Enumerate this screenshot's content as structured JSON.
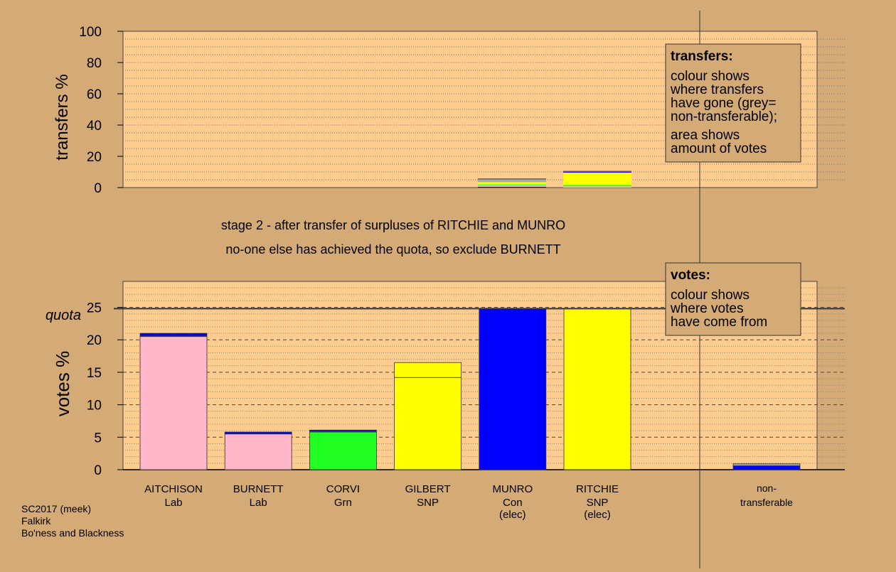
{
  "page": {
    "caption": [
      "stage 2 - after transfer of surpluses of RITCHIE and MUNRO",
      "no-one else has achieved the quota, so exclude BURNETT"
    ],
    "footer": [
      "SC2017 (meek)",
      "Falkirk",
      "Bo'ness and Blackness"
    ]
  },
  "colors": {
    "background": "#d4aa76",
    "plot_bg": "#ffcc8f",
    "Lab": "#ffb6c8",
    "Grn": "#22ff22",
    "SNP": "#ffff00",
    "Con": "#0000ff",
    "nontransferable": "#a9a9a9"
  },
  "chart_data": [
    {
      "type": "bar",
      "name": "transfers",
      "ylabel": "transfers %",
      "ylim": [
        0,
        100
      ],
      "yticks": [
        0,
        20,
        40,
        60,
        80,
        100
      ],
      "grid": "dotted every 5",
      "legend": {
        "placement": "top-right",
        "title": "transfers:",
        "lines": [
          "colour shows",
          "where transfers",
          "have gone (grey=",
          "non-transferable);"
        ],
        "lines2": [
          "area shows",
          "amount of votes"
        ]
      },
      "columns": [
        {
          "candidate": "MUNRO",
          "segments": [
            {
              "party": "Con",
              "value": 0.5
            },
            {
              "party": "Lab",
              "value": 1.0
            },
            {
              "party": "Grn",
              "value": 0.5
            },
            {
              "party": "SNP",
              "value": 1.5
            },
            {
              "party": "nontransferable",
              "value": 2.0
            }
          ]
        },
        {
          "candidate": "RITCHIE",
          "segments": [
            {
              "party": "Lab",
              "value": 0.8
            },
            {
              "party": "Grn",
              "value": 0.8
            },
            {
              "party": "SNP",
              "value": 8.0
            },
            {
              "party": "Con",
              "value": 0.4
            },
            {
              "party": "nontransferable",
              "value": 0.4
            }
          ]
        }
      ]
    },
    {
      "type": "bar",
      "name": "votes",
      "ylabel": "votes %",
      "ylim": [
        0,
        29
      ],
      "yticks": [
        0,
        5,
        10,
        15,
        20,
        25
      ],
      "quota": 24.8,
      "quota_label": "quota",
      "grid": "dashed every 5, dotted every 1",
      "legend": {
        "placement": "top-right",
        "title": "votes:",
        "lines": [
          "colour shows",
          "where votes",
          "have come from"
        ]
      },
      "categories": [
        {
          "name": "AITCHISON",
          "party": "Lab",
          "note": "",
          "segments": [
            {
              "party": "Lab",
              "value": 20.5
            },
            {
              "party": "SNP",
              "value": 0.1
            },
            {
              "party": "Con",
              "value": 0.4
            }
          ]
        },
        {
          "name": "BURNETT",
          "party": "Lab",
          "note": "",
          "segments": [
            {
              "party": "Lab",
              "value": 5.5
            },
            {
              "party": "Con",
              "value": 0.3
            }
          ]
        },
        {
          "name": "CORVI",
          "party": "Grn",
          "note": "",
          "segments": [
            {
              "party": "Grn",
              "value": 5.8
            },
            {
              "party": "SNP",
              "value": 0.1
            },
            {
              "party": "Con",
              "value": 0.2
            }
          ]
        },
        {
          "name": "GILBERT",
          "party": "SNP",
          "note": "",
          "segments": [
            {
              "party": "SNP",
              "value": 14.2
            },
            {
              "party": "SNP",
              "value": 2.3
            }
          ]
        },
        {
          "name": "MUNRO",
          "party": "Con",
          "note": "(elec)",
          "segments": [
            {
              "party": "Con",
              "value": 24.8
            }
          ]
        },
        {
          "name": "RITCHIE",
          "party": "SNP",
          "note": "(elec)",
          "segments": [
            {
              "party": "SNP",
              "value": 24.8
            }
          ]
        }
      ],
      "nontransferable": {
        "label": [
          "non-",
          "transferable"
        ],
        "segments": [
          {
            "party": "Con",
            "value": 0.6
          },
          {
            "party": "nontransferable",
            "value": 0.3
          }
        ]
      }
    }
  ]
}
